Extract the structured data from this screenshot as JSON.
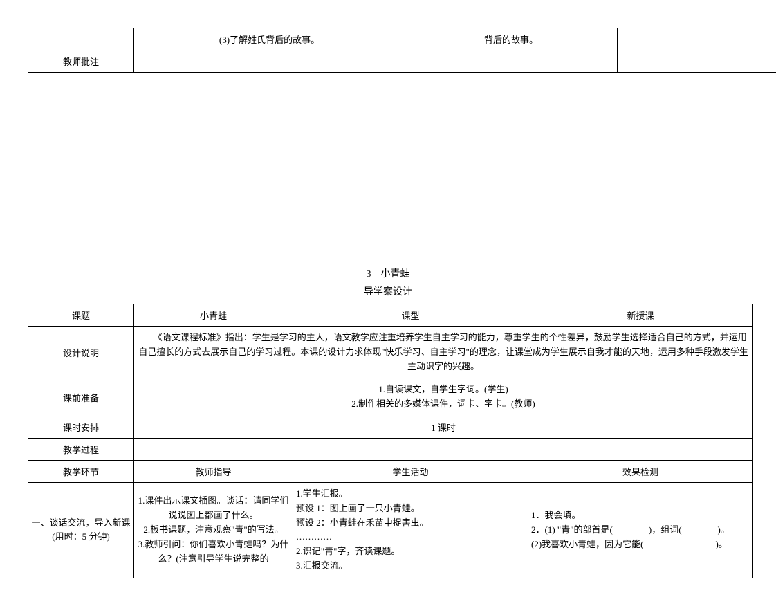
{
  "table1": {
    "row1_col2": "(3)了解姓氏背后的故事。",
    "row1_col3": "背后的故事。",
    "row2_col1": "教师批注"
  },
  "titles": {
    "main": "3　小青蛙",
    "sub": "导学案设计"
  },
  "table2": {
    "header": {
      "c1": "课题",
      "c2": "小青蛙",
      "c3": "课型",
      "c4": "新授课"
    },
    "design_label": "设计说明",
    "design_text": "　　《语文课程标准》指出：学生是学习的主人，语文教学应注重培养学生自主学习的能力，尊重学生的个性差异，鼓励学生选择适合自己的方式，并运用自己擅长的方式去展示自己的学习过程。本课的设计力求体现\"快乐学习、自主学习\"的理念，让课堂成为学生展示自我才能的天地，运用多种手段激发学生主动识字的兴趣。",
    "prep_label": "课前准备",
    "prep_text1": "1.自读课文，自学生字词。(学生)",
    "prep_text2": "2.制作相关的多媒体课件，词卡、字卡。(教师)",
    "time_label": "课时安排",
    "time_value": "1 课时",
    "process_label": "教学过程",
    "segment_header": {
      "c1": "教学环节",
      "c2": "教师指导",
      "c3": "学生活动",
      "c4": "效果检测"
    },
    "segment1": {
      "label": "一、谈话交流，导入新课(用时：5 分钟)",
      "teacher": "1.课件出示课文插图。谈话：请同学们说说图上都画了什么。\n2.板书课题，注意观察\"青\"的写法。\n3.教师引问：你们喜欢小青蛙吗？为什么？(注意引导学生说完整的",
      "student": "1.学生汇报。\n预设 1：图上画了一只小青蛙。\n预设 2：小青蛙在禾苗中捉害虫。\n…………\n2.识记\"青\"字，齐读课题。\n3.汇报交流。",
      "check": "1．我会填。\n2．(1) \"青\"的部首是(　　　　)，组词(　　　　)。\n(2)我喜欢小青蛙，因为它能(　　　　　　　　)。"
    }
  }
}
